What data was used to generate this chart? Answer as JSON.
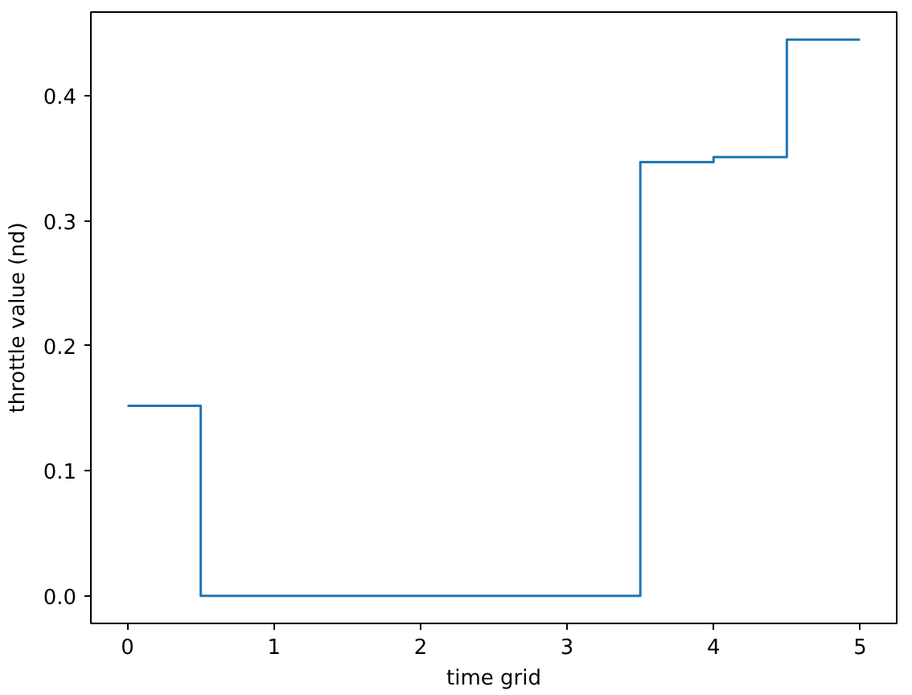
{
  "chart_data": {
    "type": "step",
    "xlabel": "time grid",
    "ylabel": "throttle value (nd)",
    "x": [
      0,
      0.5,
      3.5,
      4,
      4.5,
      5
    ],
    "values": [
      0.152,
      0,
      0.347,
      0.351,
      0.445,
      0.445
    ],
    "color": "#1f77b4",
    "xlim": [
      -0.25,
      5.25
    ],
    "ylim": [
      -0.022,
      0.467
    ],
    "xticks": [
      0,
      1,
      2,
      3,
      4,
      5
    ],
    "yticks": [
      {
        "value": 0,
        "label": "0.0"
      },
      {
        "value": 0.1,
        "label": "0.1"
      },
      {
        "value": 0.2,
        "label": "0.2"
      },
      {
        "value": 0.3,
        "label": "0.3"
      },
      {
        "value": 0.4,
        "label": "0.4"
      }
    ]
  }
}
